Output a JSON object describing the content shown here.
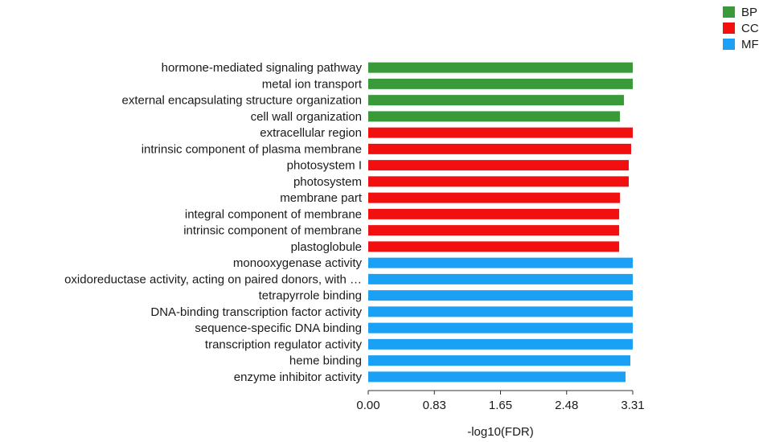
{
  "chart_data": {
    "type": "bar",
    "orientation": "horizontal",
    "categories": [
      "hormone-mediated signaling pathway",
      "metal ion transport",
      "external encapsulating structure organization",
      "cell wall organization",
      "extracellular region",
      "intrinsic component of plasma membrane",
      "photosystem I",
      "photosystem",
      "membrane part",
      "integral component of membrane",
      "intrinsic component of membrane",
      "plastoglobule",
      "monooxygenase activity",
      "oxidoreductase activity, acting on paired donors, with …",
      "tetrapyrrole binding",
      "DNA-binding transcription factor activity",
      "sequence-specific DNA binding",
      "transcription regulator activity",
      "heme binding",
      "enzyme inhibitor activity"
    ],
    "values": [
      3.31,
      3.31,
      3.2,
      3.15,
      3.31,
      3.29,
      3.26,
      3.26,
      3.15,
      3.14,
      3.14,
      3.14,
      3.31,
      3.31,
      3.31,
      3.31,
      3.31,
      3.31,
      3.28,
      3.22
    ],
    "groups": [
      "BP",
      "BP",
      "BP",
      "BP",
      "CC",
      "CC",
      "CC",
      "CC",
      "CC",
      "CC",
      "CC",
      "CC",
      "MF",
      "MF",
      "MF",
      "MF",
      "MF",
      "MF",
      "MF",
      "MF"
    ],
    "legend": [
      {
        "name": "BP",
        "color": "#3a9a3a"
      },
      {
        "name": "CC",
        "color": "#f20f0f"
      },
      {
        "name": "MF",
        "color": "#1aa0f4"
      }
    ],
    "legend_position": "top-right",
    "xticks": [
      "0.00",
      "0.83",
      "1.65",
      "2.48",
      "3.31"
    ],
    "xlim": [
      0,
      3.31
    ],
    "xlabel": "-log10(FDR)",
    "ylabel": "",
    "title": "",
    "grid": false
  }
}
